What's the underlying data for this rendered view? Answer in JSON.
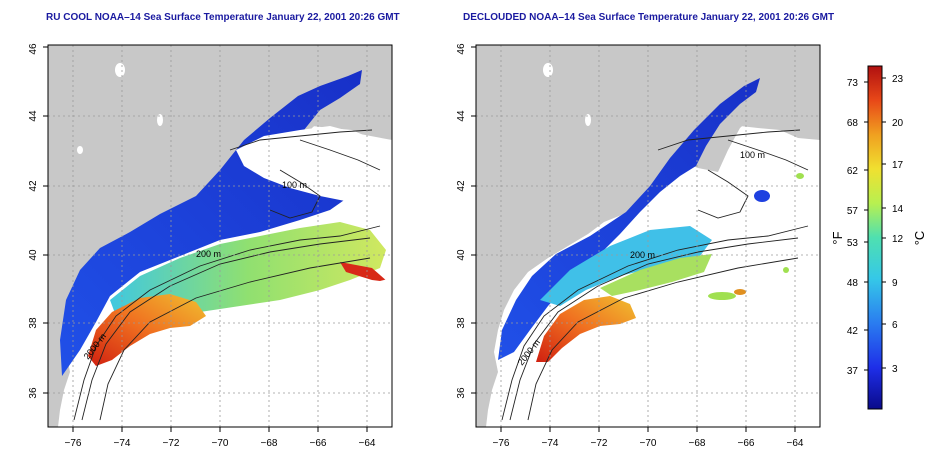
{
  "panels": [
    {
      "title": "RU COOL NOAA–14 Sea Surface Temperature January 22, 2001 20:26 GMT",
      "contour_labels": [
        "100 m",
        "200 m",
        "2000 m"
      ]
    },
    {
      "title": "DECLOUDED NOAA–14 Sea Surface Temperature January 22, 2001 20:26 GMT",
      "contour_labels": [
        "100 m",
        "200 m",
        "2000 m"
      ]
    }
  ],
  "axes": {
    "x_ticks": [
      "−76",
      "−74",
      "−72",
      "−70",
      "−68",
      "−66",
      "−64"
    ],
    "y_ticks": [
      "36",
      "38",
      "40",
      "42",
      "44",
      "46"
    ]
  },
  "colorbar": {
    "fahrenheit_label": "°F",
    "celsius_label": "°C",
    "fahrenheit_ticks": [
      "73",
      "68",
      "62",
      "57",
      "53",
      "48",
      "42",
      "37"
    ],
    "celsius_ticks": [
      "23",
      "20",
      "17",
      "14",
      "12",
      "9",
      "6",
      "3"
    ],
    "colors": [
      "#0a0a8a",
      "#1e2ee8",
      "#2a7cf0",
      "#35c8e8",
      "#4fe0b0",
      "#b8f050",
      "#f0e030",
      "#f0a020",
      "#e84818",
      "#b01010"
    ]
  },
  "land_color": "#c8c8c8",
  "grid_color": "#9a9a9a"
}
